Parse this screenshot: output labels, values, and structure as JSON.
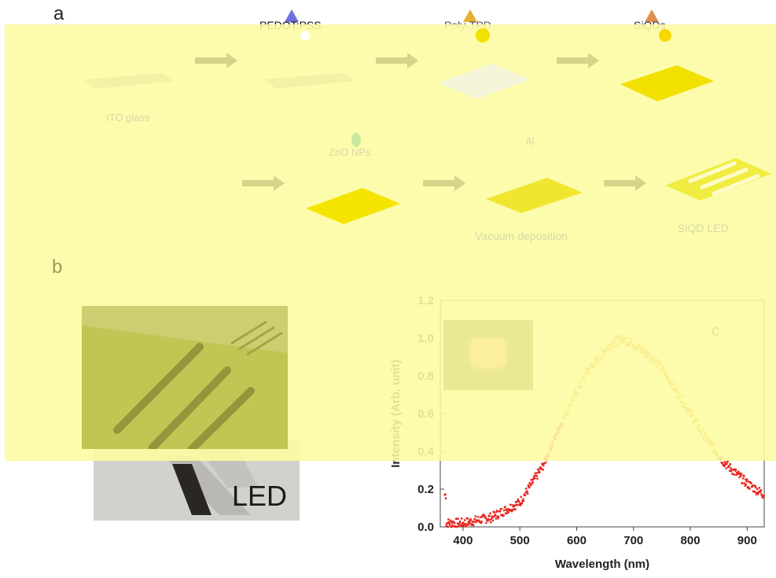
{
  "panel_a": {
    "letter": "a",
    "step_labels": {
      "ito_glass": "ITO glass",
      "pedot_pss": "PEDOT:PSS",
      "poly_tpd": "Poly-TPD",
      "siqds": "SiQDs",
      "zno_nps": "ZnO NPs",
      "al": "Al",
      "vacuum_deposition": "Vacuum deposition",
      "siqd_led": "SiQD LED"
    }
  },
  "panel_b": {
    "letter": "b",
    "photo_label": "LED"
  },
  "panel_c": {
    "letter": "c",
    "colors": {
      "left_tail": "#e8231b",
      "peak_region": "#f08a1c",
      "overlay": "#fcfca0"
    },
    "chart_data": {
      "type": "scatter",
      "xlabel": "Wavelength (nm)",
      "ylabel": "Intensity (Arb. unit)",
      "xlim": [
        360,
        930
      ],
      "ylim": [
        0,
        1.2
      ],
      "x_ticks": [
        "400",
        "500",
        "600",
        "700",
        "800",
        "900"
      ],
      "y_ticks": [
        "0.0",
        "0.2",
        "0.4",
        "0.6",
        "0.8",
        "1.0",
        "1.2"
      ],
      "peak_wavelength": 680,
      "peak_intensity": 1.0,
      "curve_points": [
        [
          370,
          0.02
        ],
        [
          400,
          0.02
        ],
        [
          450,
          0.05
        ],
        [
          500,
          0.13
        ],
        [
          540,
          0.32
        ],
        [
          580,
          0.6
        ],
        [
          620,
          0.83
        ],
        [
          660,
          0.97
        ],
        [
          680,
          1.0
        ],
        [
          700,
          0.97
        ],
        [
          740,
          0.88
        ],
        [
          780,
          0.7
        ],
        [
          820,
          0.5
        ],
        [
          860,
          0.34
        ],
        [
          900,
          0.23
        ],
        [
          930,
          0.17
        ]
      ]
    }
  }
}
